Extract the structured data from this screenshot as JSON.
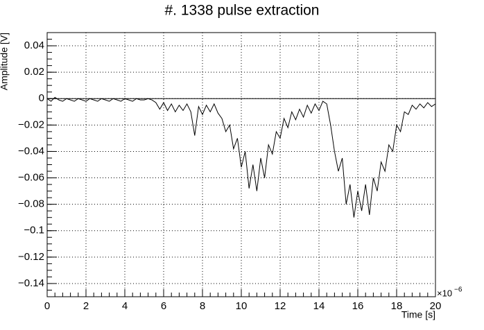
{
  "chart_data": {
    "type": "line",
    "title": "#. 1338 pulse extraction",
    "x_label": "Time [s]",
    "y_label": "Amplitude [V]",
    "x_exponent": {
      "base": "×10",
      "power": "−6"
    },
    "xlim": [
      0,
      20
    ],
    "xticks": [
      0,
      2,
      4,
      6,
      8,
      10,
      12,
      14,
      16,
      18,
      20
    ],
    "ylim": [
      -0.15,
      0.05
    ],
    "yticks": [
      0.04,
      0.02,
      0,
      {
        "value": -0.02,
        "label": "−0.02"
      },
      {
        "value": -0.04,
        "label": "−0.04"
      },
      {
        "value": -0.06,
        "label": "−0.06"
      },
      {
        "value": -0.08,
        "label": "−0.08"
      },
      {
        "value": -0.1,
        "label": "−0.1"
      },
      {
        "value": -0.12,
        "label": "−0.12"
      },
      {
        "value": -0.14,
        "label": "−0.14"
      }
    ],
    "grid": true,
    "color": "#000000",
    "x": [
      0,
      0.2,
      0.4,
      0.6,
      0.8,
      1,
      1.2,
      1.4,
      1.6,
      1.8,
      2,
      2.2,
      2.4,
      2.6,
      2.8,
      3,
      3.2,
      3.4,
      3.6,
      3.8,
      4,
      4.2,
      4.4,
      4.6,
      4.8,
      5,
      5.2,
      5.4,
      5.6,
      5.8,
      6,
      6.2,
      6.4,
      6.6,
      6.8,
      7,
      7.2,
      7.4,
      7.6,
      7.8,
      8,
      8.2,
      8.4,
      8.6,
      8.8,
      9,
      9.2,
      9.4,
      9.6,
      9.8,
      10,
      10.2,
      10.4,
      10.6,
      10.8,
      11,
      11.2,
      11.4,
      11.6,
      11.8,
      12,
      12.2,
      12.4,
      12.6,
      12.8,
      13,
      13.2,
      13.4,
      13.6,
      13.8,
      14,
      14.2,
      14.4,
      14.6,
      14.8,
      15,
      15.2,
      15.4,
      15.6,
      15.8,
      16,
      16.2,
      16.4,
      16.6,
      16.8,
      17,
      17.2,
      17.4,
      17.6,
      17.8,
      18,
      18.2,
      18.4,
      18.6,
      18.8,
      19,
      19.2,
      19.4,
      19.6,
      19.8,
      20
    ],
    "values": [
      0,
      -0.002,
      0.001,
      -0.001,
      -0.002,
      0,
      -0.001,
      -0.002,
      0,
      -0.001,
      -0.002,
      0,
      -0.001,
      -0.002,
      0,
      -0.001,
      -0.002,
      0,
      -0.001,
      -0.002,
      0,
      -0.001,
      -0.002,
      0,
      -0.001,
      -0.001,
      0,
      -0.001,
      -0.003,
      -0.008,
      -0.003,
      -0.009,
      -0.004,
      -0.01,
      -0.005,
      -0.009,
      -0.004,
      -0.01,
      -0.028,
      -0.006,
      -0.012,
      -0.005,
      -0.01,
      -0.004,
      -0.011,
      -0.015,
      -0.025,
      -0.02,
      -0.038,
      -0.03,
      -0.052,
      -0.04,
      -0.068,
      -0.05,
      -0.07,
      -0.045,
      -0.06,
      -0.035,
      -0.042,
      -0.025,
      -0.03,
      -0.015,
      -0.022,
      -0.01,
      -0.016,
      -0.008,
      -0.014,
      -0.005,
      -0.011,
      -0.004,
      -0.009,
      -0.002,
      -0.004,
      -0.02,
      -0.04,
      -0.055,
      -0.045,
      -0.08,
      -0.065,
      -0.09,
      -0.07,
      -0.085,
      -0.065,
      -0.088,
      -0.06,
      -0.07,
      -0.048,
      -0.055,
      -0.035,
      -0.04,
      -0.02,
      -0.025,
      -0.01,
      -0.012,
      -0.005,
      -0.008,
      -0.004,
      -0.007,
      -0.003,
      -0.006,
      -0.004
    ]
  }
}
